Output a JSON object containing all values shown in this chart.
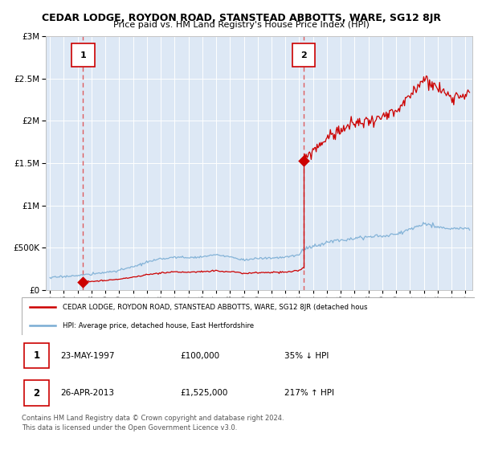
{
  "title": "CEDAR LODGE, ROYDON ROAD, STANSTEAD ABBOTTS, WARE, SG12 8JR",
  "subtitle": "Price paid vs. HM Land Registry's House Price Index (HPI)",
  "sale1_date": 1997.38,
  "sale1_price": 100000,
  "sale2_date": 2013.32,
  "sale2_price": 1525000,
  "ylim": [
    0,
    3000000
  ],
  "xlim": [
    1994.7,
    2025.5
  ],
  "plot_bg_color": "#dde8f5",
  "fig_bg_color": "#ffffff",
  "red_line_color": "#cc0000",
  "blue_line_color": "#7aadd4",
  "grid_color": "#ffffff",
  "dashed_color": "#dd4444",
  "legend_label_red": "CEDAR LODGE, ROYDON ROAD, STANSTEAD ABBOTTS, WARE, SG12 8JR (detached hous",
  "legend_label_blue": "HPI: Average price, detached house, East Hertfordshire",
  "footer1": "Contains HM Land Registry data © Crown copyright and database right 2024.",
  "footer2": "This data is licensed under the Open Government Licence v3.0.",
  "table_rows": [
    [
      "1",
      "23-MAY-1997",
      "£100,000",
      "35% ↓ HPI"
    ],
    [
      "2",
      "26-APR-2013",
      "£1,525,000",
      "217% ↑ HPI"
    ]
  ]
}
